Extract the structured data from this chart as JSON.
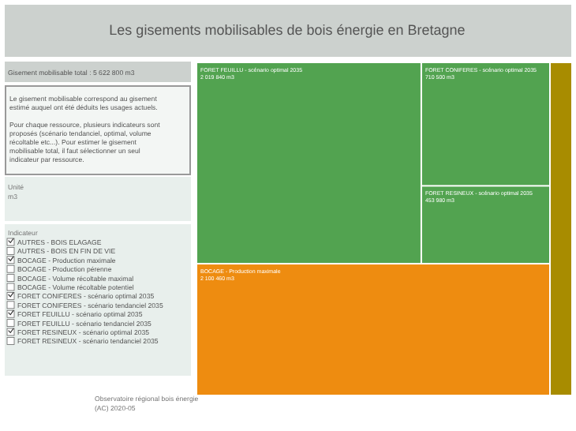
{
  "chart_data": {
    "type": "other",
    "title": "Les gisements mobilisables de bois énergie en Bretagne",
    "categories": [
      "FORET FEUILLU - scénario optimal 2035",
      "FORET CONIFERES - scénario optimal 2035",
      "FORET RESINEUX - scénario optimal 2035",
      "BOCAGE - Production maximale",
      null
    ],
    "values": [
      2019840,
      710500,
      453980,
      2100460,
      null
    ],
    "value_labels": [
      "2 019 840 m3",
      "710 500 m3",
      "453 980 m3",
      "2 100 460 m3",
      null
    ],
    "colors": [
      "#52a350",
      "#52a350",
      "#52a350",
      "#ee8c10",
      "#a88c00"
    ],
    "annotations": [
      "Gisement mobilisable total : 5 622 800 m3",
      "Le gisement mobilisable correspond au gisement estimé auquel ont été déduits les usages actuels.",
      "Pour chaque ressource, plusieurs indicateurs sont proposés (scénario tendanciel, optimal, volume récoltable etc...). Pour estimer le gisement mobilisable total, il faut sélectionner un seul indicateur par ressource.",
      "Unité",
      "m3",
      "Indicateur",
      "AUTRES - BOIS ELAGAGE",
      "AUTRES - BOIS EN FIN DE VIE",
      "BOCAGE - Production maximale",
      "BOCAGE - Production pérenne",
      "BOCAGE - Volume récoltable maximal",
      "BOCAGE - Volume récoltable potentiel",
      "FORET CONIFERES - scénario optimal 2035",
      "FORET CONIFERES - scénario tendanciel 2035",
      "FORET FEUILLU - scénario optimal 2035",
      "FORET FEUILLU - scénario tendanciel 2035",
      "FORET RESINEUX - scénario optimal 2035",
      "FORET RESINEUX - scénario tendanciel 2035",
      "Observatoire régional bois énergie",
      "(AC) 2020-05"
    ]
  }
}
